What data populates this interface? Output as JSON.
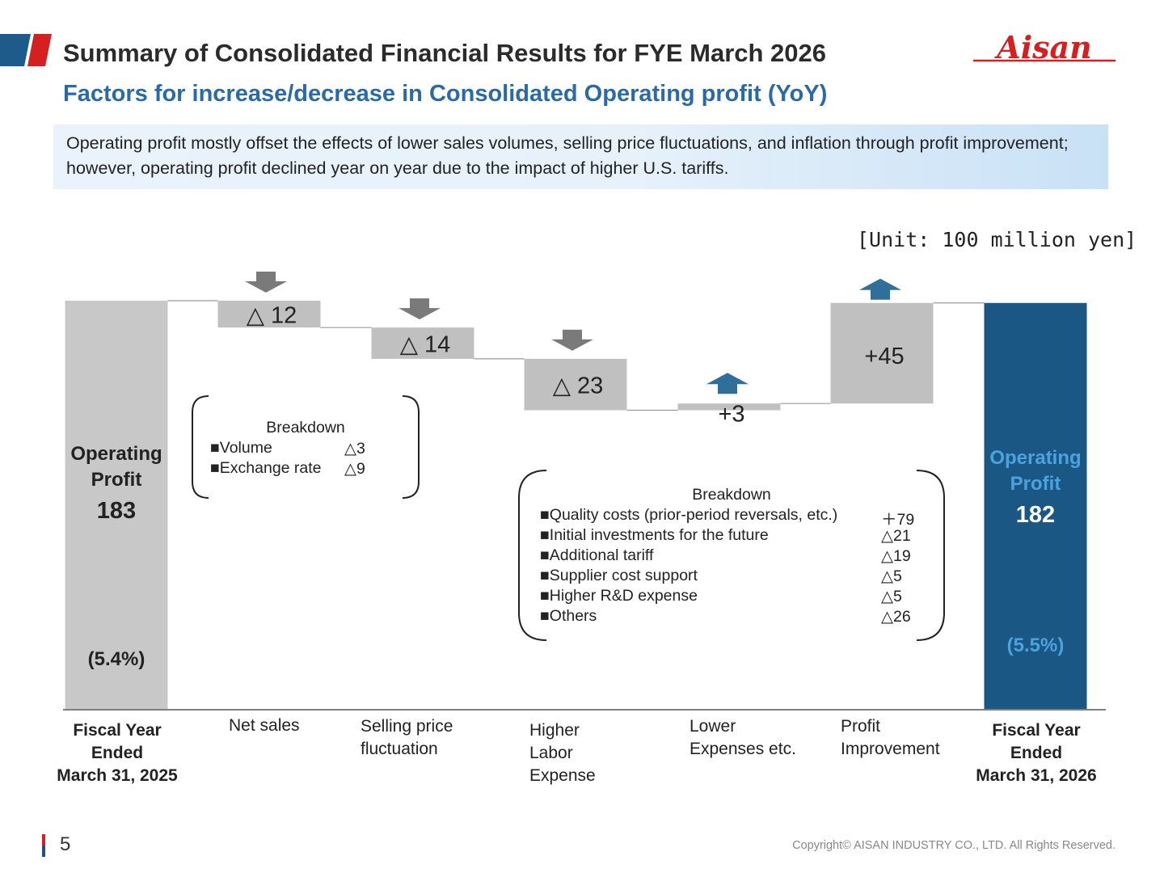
{
  "header": {
    "title": "Summary of Consolidated Financial Results for FYE March 2026",
    "subtitle": "Factors for increase/decrease in Consolidated Operating profit (YoY)",
    "logo_text": "Aisan",
    "accent_color": "#d42020",
    "brand_blue": "#1e5a8a"
  },
  "summary": {
    "text": "Operating profit mostly offset the effects of lower sales volumes, selling price fluctuations, and inflation through profit improvement; however, operating profit declined year on year due to the impact of higher U.S. tariffs."
  },
  "unit_label": "[Unit: 100 million yen]",
  "chart_data": {
    "type": "bar",
    "subtype": "waterfall",
    "categories": [
      "Fiscal Year Ended March 31, 2025",
      "Net sales",
      "Selling price fluctuation",
      "Higher Labor Expense",
      "Lower Expenses etc.",
      "Profit Improvement",
      "Fiscal Year Ended March 31, 2026"
    ],
    "values": [
      183,
      -12,
      -14,
      -23,
      3,
      45,
      182
    ],
    "bar_roles": [
      "total",
      "delta",
      "delta",
      "delta",
      "delta",
      "delta",
      "total"
    ],
    "delta_labels": [
      "△ 12",
      "△ 14",
      "△ 23",
      "+3",
      "+45"
    ],
    "start_total": {
      "label_line1": "Operating",
      "label_line2": "Profit",
      "value_label": "183",
      "margin": "(5.4%)"
    },
    "end_total": {
      "label_line1": "Operating",
      "label_line2": "Profit",
      "value_label": "182",
      "margin": "(5.5%)"
    },
    "colors": {
      "total_start": "#c8c8c8",
      "delta": "#c0c0c0",
      "total_end": "#1b5784",
      "arrow_down": "#7a7a7a",
      "arrow_up": "#2f6f9a",
      "connector": "#9a9a9a"
    }
  },
  "categories_display": {
    "fy2025": [
      "Fiscal Year",
      "Ended",
      "March 31, 2025"
    ],
    "net_sales": [
      "Net sales"
    ],
    "selling_price": [
      "Selling price",
      "fluctuation"
    ],
    "labor": [
      "Higher",
      "Labor",
      "Expense"
    ],
    "lower_expenses": [
      "Lower",
      "Expenses etc."
    ],
    "profit_improvement": [
      "Profit",
      "Improvement"
    ],
    "fy2026": [
      "Fiscal Year",
      "Ended",
      "March 31, 2026"
    ]
  },
  "breakdown_net_sales": {
    "title": "Breakdown",
    "items": [
      {
        "label": "■Volume",
        "value": "△3"
      },
      {
        "label": "■Exchange rate",
        "value": "△9"
      }
    ]
  },
  "breakdown_profit_improvement": {
    "title": "Breakdown",
    "items": [
      {
        "label": "■Quality costs (prior-period reversals, etc.)",
        "value": "＋79"
      },
      {
        "label": "■Initial investments for the future",
        "value": "△21"
      },
      {
        "label": "■Additional tariff",
        "value": "△19"
      },
      {
        "label": "■Supplier cost support",
        "value": "△5"
      },
      {
        "label": "■Higher R&D expense",
        "value": "△5"
      },
      {
        "label": "■Others",
        "value": "△26"
      }
    ]
  },
  "footer": {
    "page_number": "5",
    "copyright": "Copyright© AISAN INDUSTRY CO., LTD. All Rights Reserved."
  }
}
